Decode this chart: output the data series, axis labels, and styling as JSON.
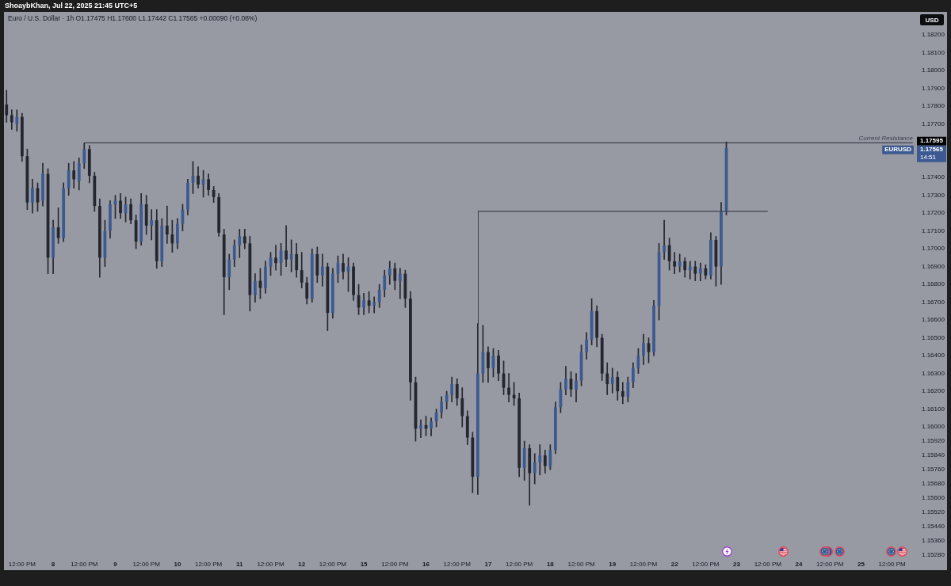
{
  "chart_data": {
    "type": "candlestick",
    "title": "Euro / U.S. Dollar · 1h O1.17475 H1.17600 L1.17442 C1.17565 +0.00090 (+0.08%)",
    "subtitle": "ShoaybKhan, Jul 22, 2025 21:45 UTC+5",
    "ylabel": "USD",
    "categories": [
      null,
      null,
      null,
      "12:00 PM",
      null,
      null,
      null,
      null,
      null,
      "8",
      null,
      null,
      null,
      null,
      null,
      "12:00 PM",
      null,
      null,
      null,
      null,
      null,
      "9",
      null,
      null,
      null,
      null,
      null,
      "12:00 PM",
      null,
      null,
      null,
      null,
      null,
      "10",
      null,
      null,
      null,
      null,
      null,
      "12:00 PM",
      null,
      null,
      null,
      null,
      null,
      "11",
      null,
      null,
      null,
      null,
      null,
      "12:00 PM",
      null,
      null,
      null,
      null,
      null,
      "12",
      null,
      null,
      null,
      null,
      null,
      "12:00 PM",
      null,
      null,
      null,
      null,
      null,
      "15",
      null,
      null,
      null,
      null,
      null,
      "12:00 PM",
      null,
      null,
      null,
      null,
      null,
      "16",
      null,
      null,
      null,
      null,
      null,
      "12:00 PM",
      null,
      null,
      null,
      null,
      null,
      "17",
      null,
      null,
      null,
      null,
      null,
      "12:00 PM",
      null,
      null,
      null,
      null,
      null,
      "18",
      null,
      null,
      null,
      null,
      null,
      "12:00 PM",
      null,
      null,
      null,
      null,
      null,
      "19",
      null,
      null,
      null,
      null,
      null,
      "12:00 PM",
      null,
      null,
      null,
      null,
      null,
      "22",
      null,
      null,
      null,
      null,
      null,
      "12:00 PM",
      null,
      null,
      null,
      null,
      null,
      "23",
      null,
      null,
      null,
      null,
      null,
      "12:00 PM",
      null,
      null,
      null,
      null,
      null,
      "24",
      null,
      null,
      null,
      null,
      null,
      "12:00 PM",
      null,
      null,
      null,
      null,
      null,
      "25",
      null,
      null,
      null,
      null,
      null,
      "12:00 PM",
      null,
      null,
      null,
      null
    ],
    "series": [
      {
        "name": "EURUSD",
        "color": "#24272f",
        "ohlc": [
          [
            1.1781,
            1.1789,
            1.1771,
            1.1775
          ],
          [
            1.1775,
            1.1778,
            1.1767,
            1.1771
          ],
          [
            1.177,
            1.1778,
            1.1766,
            1.1774
          ],
          [
            1.1774,
            1.1776,
            1.1749,
            1.1752
          ],
          [
            1.1752,
            1.1756,
            1.1722,
            1.1726
          ],
          [
            1.1726,
            1.1739,
            1.172,
            1.1734
          ],
          [
            1.1734,
            1.1737,
            1.1721,
            1.1726
          ],
          [
            1.1727,
            1.1748,
            1.1724,
            1.1742
          ],
          [
            1.1742,
            1.1745,
            1.1686,
            1.1695
          ],
          [
            1.1695,
            1.1716,
            1.1686,
            1.1712
          ],
          [
            1.1712,
            1.1723,
            1.1703,
            1.1706
          ],
          [
            1.1706,
            1.1737,
            1.1704,
            1.1734
          ],
          [
            1.1734,
            1.1748,
            1.173,
            1.1744
          ],
          [
            1.1744,
            1.1749,
            1.1734,
            1.1739
          ],
          [
            1.1738,
            1.1751,
            1.1733,
            1.1748
          ],
          [
            1.1748,
            1.17595,
            1.1745,
            1.1756
          ],
          [
            1.1756,
            1.1758,
            1.1737,
            1.1741
          ],
          [
            1.1741,
            1.1743,
            1.1721,
            1.1724
          ],
          [
            1.1724,
            1.1728,
            1.1684,
            1.1695
          ],
          [
            1.1695,
            1.1716,
            1.169,
            1.171
          ],
          [
            1.171,
            1.1727,
            1.1706,
            1.1725
          ],
          [
            1.1725,
            1.173,
            1.1717,
            1.1727
          ],
          [
            1.1727,
            1.1731,
            1.1717,
            1.172
          ],
          [
            1.172,
            1.1729,
            1.1715,
            1.1725
          ],
          [
            1.1725,
            1.1728,
            1.1714,
            1.1716
          ],
          [
            1.1716,
            1.1719,
            1.17,
            1.1704
          ],
          [
            1.1704,
            1.1731,
            1.1702,
            1.1725
          ],
          [
            1.1725,
            1.173,
            1.1708,
            1.1713
          ],
          [
            1.1713,
            1.1722,
            1.1705,
            1.1716
          ],
          [
            1.1716,
            1.1722,
            1.1689,
            1.1693
          ],
          [
            1.1693,
            1.1717,
            1.169,
            1.1713
          ],
          [
            1.1713,
            1.1724,
            1.1703,
            1.1708
          ],
          [
            1.1708,
            1.1716,
            1.1698,
            1.1703
          ],
          [
            1.1703,
            1.1717,
            1.17,
            1.1714
          ],
          [
            1.1714,
            1.1725,
            1.171,
            1.1722
          ],
          [
            1.1722,
            1.1739,
            1.1719,
            1.1737
          ],
          [
            1.1737,
            1.1749,
            1.1731,
            1.1741
          ],
          [
            1.1741,
            1.1746,
            1.1734,
            1.1736
          ],
          [
            1.1736,
            1.1744,
            1.1729,
            1.1739
          ],
          [
            1.1739,
            1.1742,
            1.173,
            1.1733
          ],
          [
            1.1733,
            1.1735,
            1.1726,
            1.1729
          ],
          [
            1.1729,
            1.1731,
            1.1707,
            1.1709
          ],
          [
            1.1708,
            1.1711,
            1.1663,
            1.1684
          ],
          [
            1.1684,
            1.1697,
            1.1677,
            1.1694
          ],
          [
            1.1694,
            1.1705,
            1.169,
            1.1702
          ],
          [
            1.1702,
            1.1711,
            1.1695,
            1.1707
          ],
          [
            1.1707,
            1.1711,
            1.17,
            1.1703
          ],
          [
            1.1703,
            1.1707,
            1.1665,
            1.1674
          ],
          [
            1.1674,
            1.1686,
            1.167,
            1.1682
          ],
          [
            1.1682,
            1.1689,
            1.1672,
            1.1678
          ],
          [
            1.1678,
            1.1693,
            1.1675,
            1.169
          ],
          [
            1.169,
            1.1698,
            1.1685,
            1.1695
          ],
          [
            1.1695,
            1.1702,
            1.1688,
            1.1692
          ],
          [
            1.1692,
            1.1703,
            1.1685,
            1.1699
          ],
          [
            1.1699,
            1.1713,
            1.169,
            1.1694
          ],
          [
            1.1694,
            1.1705,
            1.1687,
            1.1697
          ],
          [
            1.1697,
            1.1703,
            1.1684,
            1.1688
          ],
          [
            1.1688,
            1.1698,
            1.1678,
            1.1681
          ],
          [
            1.1681,
            1.1684,
            1.1669,
            1.1672
          ],
          [
            1.1672,
            1.17,
            1.167,
            1.1697
          ],
          [
            1.1697,
            1.1701,
            1.1681,
            1.1685
          ],
          [
            1.1685,
            1.1697,
            1.1679,
            1.169
          ],
          [
            1.169,
            1.1692,
            1.1654,
            1.1664
          ],
          [
            1.1664,
            1.1689,
            1.1661,
            1.1686
          ],
          [
            1.1686,
            1.1696,
            1.1681,
            1.1692
          ],
          [
            1.1692,
            1.1697,
            1.1683,
            1.1687
          ],
          [
            1.1687,
            1.1695,
            1.1676,
            1.169
          ],
          [
            1.169,
            1.1692,
            1.1671,
            1.1674
          ],
          [
            1.1674,
            1.168,
            1.1663,
            1.1667
          ],
          [
            1.1667,
            1.1675,
            1.1663,
            1.1671
          ],
          [
            1.1671,
            1.1676,
            1.1664,
            1.1668
          ],
          [
            1.1668,
            1.1673,
            1.1664,
            1.167
          ],
          [
            1.167,
            1.168,
            1.1667,
            1.1677
          ],
          [
            1.1677,
            1.1688,
            1.1673,
            1.1685
          ],
          [
            1.1685,
            1.1693,
            1.168,
            1.1689
          ],
          [
            1.1689,
            1.1692,
            1.1677,
            1.1682
          ],
          [
            1.1682,
            1.1689,
            1.1672,
            1.1686
          ],
          [
            1.1686,
            1.1688,
            1.1667,
            1.1672
          ],
          [
            1.1672,
            1.1676,
            1.1615,
            1.1625
          ],
          [
            1.1625,
            1.1628,
            1.1592,
            1.1599
          ],
          [
            1.1599,
            1.1604,
            1.1594,
            1.1601
          ],
          [
            1.1601,
            1.1606,
            1.1595,
            1.1599
          ],
          [
            1.1599,
            1.1605,
            1.1595,
            1.1603
          ],
          [
            1.1603,
            1.161,
            1.16,
            1.1608
          ],
          [
            1.1608,
            1.1617,
            1.1605,
            1.1614
          ],
          [
            1.1614,
            1.162,
            1.161,
            1.1618
          ],
          [
            1.1618,
            1.1628,
            1.1614,
            1.1624
          ],
          [
            1.1624,
            1.1627,
            1.1612,
            1.1616
          ],
          [
            1.1616,
            1.1622,
            1.16,
            1.1606
          ],
          [
            1.1606,
            1.1609,
            1.159,
            1.1594
          ],
          [
            1.1594,
            1.1597,
            1.1563,
            1.1572
          ],
          [
            1.1572,
            1.1658,
            1.1562,
            1.163
          ],
          [
            1.163,
            1.1657,
            1.1625,
            1.1642
          ],
          [
            1.1642,
            1.1645,
            1.1625,
            1.1633
          ],
          [
            1.1633,
            1.1644,
            1.1628,
            1.164
          ],
          [
            1.164,
            1.1643,
            1.1626,
            1.163
          ],
          [
            1.163,
            1.1637,
            1.1618,
            1.1622
          ],
          [
            1.1622,
            1.163,
            1.1614,
            1.1618
          ],
          [
            1.1618,
            1.1625,
            1.1612,
            1.1616
          ],
          [
            1.1616,
            1.1619,
            1.1572,
            1.1577
          ],
          [
            1.1577,
            1.1592,
            1.157,
            1.1588
          ],
          [
            1.1588,
            1.159,
            1.1556,
            1.1574
          ],
          [
            1.1574,
            1.1585,
            1.1568,
            1.158
          ],
          [
            1.158,
            1.159,
            1.1573,
            1.1584
          ],
          [
            1.1584,
            1.1587,
            1.1574,
            1.1578
          ],
          [
            1.1578,
            1.159,
            1.1576,
            1.1587
          ],
          [
            1.1587,
            1.1614,
            1.1585,
            1.1611
          ],
          [
            1.1611,
            1.1625,
            1.1608,
            1.1621
          ],
          [
            1.1621,
            1.1634,
            1.1618,
            1.1627
          ],
          [
            1.1627,
            1.1631,
            1.1617,
            1.1621
          ],
          [
            1.1621,
            1.163,
            1.1614,
            1.1626
          ],
          [
            1.1626,
            1.1646,
            1.1623,
            1.1642
          ],
          [
            1.1642,
            1.1653,
            1.1638,
            1.1649
          ],
          [
            1.1649,
            1.1672,
            1.1646,
            1.1665
          ],
          [
            1.1665,
            1.1668,
            1.1645,
            1.165
          ],
          [
            1.165,
            1.1652,
            1.1626,
            1.163
          ],
          [
            1.163,
            1.1636,
            1.1618,
            1.1624
          ],
          [
            1.1624,
            1.1633,
            1.1619,
            1.1628
          ],
          [
            1.1628,
            1.1631,
            1.1615,
            1.162
          ],
          [
            1.162,
            1.1625,
            1.1613,
            1.1617
          ],
          [
            1.1617,
            1.1628,
            1.1614,
            1.1625
          ],
          [
            1.1625,
            1.1636,
            1.1622,
            1.1633
          ],
          [
            1.1633,
            1.1644,
            1.163,
            1.164
          ],
          [
            1.164,
            1.1652,
            1.1635,
            1.1647
          ],
          [
            1.1647,
            1.165,
            1.1636,
            1.1642
          ],
          [
            1.1642,
            1.1671,
            1.164,
            1.1668
          ],
          [
            1.1668,
            1.1703,
            1.166,
            1.1698
          ],
          [
            1.1698,
            1.1716,
            1.1694,
            1.1702
          ],
          [
            1.1702,
            1.1706,
            1.1688,
            1.1693
          ],
          [
            1.1693,
            1.1698,
            1.1686,
            1.169
          ],
          [
            1.169,
            1.1697,
            1.1687,
            1.1693
          ],
          [
            1.1693,
            1.1695,
            1.1684,
            1.1688
          ],
          [
            1.1688,
            1.1693,
            1.1683,
            1.169
          ],
          [
            1.169,
            1.1693,
            1.1682,
            1.1686
          ],
          [
            1.1686,
            1.1692,
            1.1682,
            1.1689
          ],
          [
            1.1689,
            1.1691,
            1.1683,
            1.1685
          ],
          [
            1.1685,
            1.1709,
            1.1683,
            1.1705
          ],
          [
            1.1705,
            1.1707,
            1.1679,
            1.169
          ],
          [
            1.169,
            1.1726,
            1.168,
            1.1721
          ],
          [
            1.1721,
            1.176,
            1.1719,
            1.17565
          ],
          null,
          null,
          null,
          null,
          null,
          null,
          null,
          null,
          null,
          null,
          null,
          null,
          null,
          null,
          null,
          null,
          null,
          null,
          null,
          null,
          null,
          null,
          null,
          null,
          null,
          null,
          null,
          null,
          null,
          null,
          null,
          null,
          null,
          null,
          null,
          null
        ],
        "colors": [
          "#24272f",
          "#24272f",
          "#3c5a91",
          "#24272f",
          "#24272f",
          "#3c5a91",
          "#24272f",
          "#3c5a91",
          "#24272f",
          "#3c5a91",
          "#24272f",
          "#3c5a91",
          "#3c5a91",
          "#24272f",
          "#3c5a91",
          "#3c5a91",
          "#24272f",
          "#24272f",
          "#24272f",
          "#3c5a91",
          "#3c5a91",
          "#3c5a91",
          "#24272f",
          "#3c5a91",
          "#24272f",
          "#24272f",
          "#3c5a91",
          "#24272f",
          "#3c5a91",
          "#24272f",
          "#3c5a91",
          "#24272f",
          "#24272f",
          "#3c5a91",
          "#3c5a91",
          "#3c5a91",
          "#3c5a91",
          "#24272f",
          "#3c5a91",
          "#24272f",
          "#24272f",
          "#24272f",
          "#24272f",
          "#3c5a91",
          "#3c5a91",
          "#3c5a91",
          "#24272f",
          "#24272f",
          "#3c5a91",
          "#24272f",
          "#3c5a91",
          "#3c5a91",
          "#24272f",
          "#3c5a91",
          "#24272f",
          "#3c5a91",
          "#24272f",
          "#24272f",
          "#24272f",
          "#3c5a91",
          "#24272f",
          "#3c5a91",
          "#24272f",
          "#3c5a91",
          "#3c5a91",
          "#24272f",
          "#3c5a91",
          "#24272f",
          "#24272f",
          "#3c5a91",
          "#24272f",
          "#3c5a91",
          "#3c5a91",
          "#3c5a91",
          "#3c5a91",
          "#24272f",
          "#3c5a91",
          "#24272f",
          "#24272f",
          "#24272f",
          "#3c5a91",
          "#24272f",
          "#3c5a91",
          "#3c5a91",
          "#3c5a91",
          "#3c5a91",
          "#3c5a91",
          "#24272f",
          "#24272f",
          "#24272f",
          "#24272f",
          "#3c5a91",
          "#3c5a91",
          "#24272f",
          "#3c5a91",
          "#24272f",
          "#24272f",
          "#24272f",
          "#24272f",
          "#24272f",
          "#3c5a91",
          "#24272f",
          "#3c5a91",
          "#3c5a91",
          "#24272f",
          "#3c5a91",
          "#3c5a91",
          "#3c5a91",
          "#3c5a91",
          "#24272f",
          "#3c5a91",
          "#3c5a91",
          "#3c5a91",
          "#3c5a91",
          "#24272f",
          "#24272f",
          "#24272f",
          "#3c5a91",
          "#24272f",
          "#24272f",
          "#3c5a91",
          "#3c5a91",
          "#3c5a91",
          "#3c5a91",
          "#24272f",
          "#3c5a91",
          "#3c5a91",
          "#3c5a91",
          "#24272f",
          "#24272f",
          "#3c5a91",
          "#24272f",
          "#3c5a91",
          "#24272f",
          "#3c5a91",
          "#24272f",
          "#3c5a91",
          "#24272f",
          "#3c5a91",
          "#3c5a91",
          null,
          null,
          null,
          null,
          null,
          null,
          null,
          null,
          null,
          null,
          null,
          null,
          null,
          null,
          null,
          null,
          null,
          null,
          null,
          null,
          null,
          null,
          null,
          null,
          null,
          null,
          null,
          null,
          null,
          null,
          null,
          null,
          null,
          null,
          null,
          null
        ],
        "value_labels": [
          null,
          null,
          null,
          null,
          null,
          null,
          null,
          null,
          null,
          null,
          null,
          null,
          null,
          null,
          null,
          null,
          null,
          null,
          null,
          null,
          null,
          null,
          null,
          null,
          null,
          null,
          null,
          null,
          null,
          null,
          null,
          null,
          null,
          null,
          null,
          null,
          null,
          null,
          null,
          null,
          null,
          null,
          null,
          null,
          null,
          null,
          null,
          null,
          null,
          null,
          null,
          null,
          null,
          null,
          null,
          null,
          null,
          null,
          null,
          null,
          null,
          null,
          null,
          null,
          null,
          null,
          null,
          null,
          null,
          null,
          null,
          null,
          null,
          null,
          null,
          null,
          null,
          null,
          null,
          null,
          null,
          null,
          null,
          null,
          null,
          null,
          null,
          null,
          null,
          null,
          null,
          null,
          null,
          null,
          null,
          null,
          null,
          null,
          null,
          null,
          null,
          null,
          null,
          null,
          null,
          null,
          null,
          null,
          null,
          null,
          null,
          null,
          null,
          null,
          null,
          null,
          null,
          null,
          null,
          null,
          null,
          null,
          null,
          null,
          null,
          null,
          null,
          null,
          null,
          null,
          null,
          null,
          null,
          null,
          null,
          null,
          null,
          null,
          null,
          "1.17565",
          null,
          null,
          null,
          null,
          null,
          null,
          null,
          null,
          null,
          null,
          null,
          null,
          null,
          null,
          null,
          null,
          null,
          null,
          null,
          null,
          null,
          null,
          null,
          null,
          null,
          null,
          null,
          null,
          null,
          null,
          null,
          null,
          null,
          null,
          null,
          null
        ]
      },
      {
        "type": "line",
        "name": "Current Resistance",
        "color": "#3e414b",
        "values": [
          null,
          null,
          null,
          null,
          null,
          null,
          null,
          null,
          null,
          null,
          null,
          null,
          null,
          null,
          null,
          1.17595,
          1.17595,
          1.17595,
          1.17595,
          1.17595,
          1.17595,
          1.17595,
          1.17595,
          1.17595,
          1.17595,
          1.17595,
          1.17595,
          1.17595,
          1.17595,
          1.17595,
          1.17595,
          1.17595,
          1.17595,
          1.17595,
          1.17595,
          1.17595,
          1.17595,
          1.17595,
          1.17595,
          1.17595,
          1.17595,
          1.17595,
          1.17595,
          1.17595,
          1.17595,
          1.17595,
          1.17595,
          1.17595,
          1.17595,
          1.17595,
          1.17595,
          1.17595,
          1.17595,
          1.17595,
          1.17595,
          1.17595,
          1.17595,
          1.17595,
          1.17595,
          1.17595,
          1.17595,
          1.17595,
          1.17595,
          1.17595,
          1.17595,
          1.17595,
          1.17595,
          1.17595,
          1.17595,
          1.17595,
          1.17595,
          1.17595,
          1.17595,
          1.17595,
          1.17595,
          1.17595,
          1.17595,
          1.17595,
          1.17595,
          1.17595,
          1.17595,
          1.17595,
          1.17595,
          1.17595,
          1.17595,
          1.17595,
          1.17595,
          1.17595,
          1.17595,
          1.17595,
          1.17595,
          1.17595,
          1.17595,
          1.17595,
          1.17595,
          1.17595,
          1.17595,
          1.17595,
          1.17595,
          1.17595,
          1.17595,
          1.17595,
          1.17595,
          1.17595,
          1.17595,
          1.17595,
          1.17595,
          1.17595,
          1.17595,
          1.17595,
          1.17595,
          1.17595,
          1.17595,
          1.17595,
          1.17595,
          1.17595,
          1.17595,
          1.17595,
          1.17595,
          1.17595,
          1.17595,
          1.17595,
          1.17595,
          1.17595,
          1.17595,
          1.17595,
          1.17595,
          1.17595,
          1.17595,
          1.17595,
          1.17595,
          1.17595,
          1.17595,
          1.17595,
          1.17595,
          1.17595,
          1.17595,
          1.17595,
          1.17595,
          1.17595,
          1.17595,
          1.17595,
          1.17595,
          1.17595,
          1.17595,
          1.17595,
          1.17595,
          1.17595,
          1.17595,
          1.17595,
          1.17595,
          1.17595,
          1.17595,
          1.17595,
          1.17595,
          1.17595,
          1.17595,
          1.17595,
          1.17595,
          1.17595,
          1.17595,
          1.17595,
          1.17595,
          1.17595,
          1.17595,
          1.17595,
          1.17595,
          1.17595,
          1.17595,
          1.17595,
          1.17595,
          1.17595,
          1.17595,
          1.17595,
          1.17595,
          1.17595
        ],
        "value_labels": [
          null,
          null,
          null,
          null,
          null,
          null,
          null,
          null,
          null,
          null,
          null,
          null,
          null,
          null,
          null,
          null,
          null,
          null,
          null,
          null,
          null,
          null,
          null,
          null,
          null,
          null,
          null,
          null,
          null,
          null,
          null,
          null,
          null,
          null,
          null,
          null,
          null,
          null,
          null,
          null,
          null,
          null,
          null,
          null,
          null,
          null,
          null,
          null,
          null,
          null,
          null,
          null,
          null,
          null,
          null,
          null,
          null,
          null,
          null,
          null,
          null,
          null,
          null,
          null,
          null,
          null,
          null,
          null,
          null,
          null,
          null,
          null,
          null,
          null,
          null,
          null,
          null,
          null,
          null,
          null,
          null,
          null,
          null,
          null,
          null,
          null,
          null,
          null,
          null,
          null,
          null,
          null,
          null,
          null,
          null,
          null,
          null,
          null,
          null,
          null,
          null,
          null,
          null,
          null,
          null,
          null,
          null,
          null,
          null,
          null,
          null,
          null,
          null,
          null,
          null,
          null,
          null,
          null,
          null,
          null,
          null,
          null,
          null,
          null,
          null,
          null,
          null,
          null,
          null,
          null,
          null,
          null,
          null,
          null,
          null,
          null,
          null,
          null,
          null,
          null,
          null,
          null,
          null,
          null,
          null,
          null,
          null,
          null,
          null,
          null,
          null,
          null,
          null,
          null,
          null,
          null,
          null,
          null,
          null,
          null,
          null,
          null,
          null,
          null,
          null,
          null,
          null,
          null,
          null,
          null,
          null,
          null,
          null,
          null,
          null,
          "1.17595"
        ]
      },
      {
        "type": "line",
        "color": "#3e414b",
        "values": [
          null,
          null,
          null,
          null,
          null,
          null,
          null,
          null,
          null,
          null,
          null,
          null,
          null,
          null,
          null,
          null,
          null,
          null,
          null,
          null,
          null,
          null,
          null,
          null,
          null,
          null,
          null,
          null,
          null,
          null,
          null,
          null,
          null,
          null,
          null,
          null,
          null,
          null,
          null,
          null,
          null,
          null,
          null,
          null,
          null,
          null,
          null,
          null,
          null,
          null,
          null,
          null,
          null,
          null,
          null,
          null,
          null,
          null,
          null,
          null,
          null,
          null,
          null,
          null,
          null,
          null,
          null,
          null,
          null,
          null,
          null,
          null,
          null,
          null,
          null,
          null,
          null,
          null,
          null,
          null,
          null,
          null,
          null,
          null,
          null,
          null,
          null,
          null,
          null,
          null,
          null,
          1.1721,
          1.1721,
          1.1721,
          1.1721,
          1.1721,
          1.1721,
          1.1721,
          1.1721,
          1.1721,
          1.1721,
          1.1721,
          1.1721,
          1.1721,
          1.1721,
          1.1721,
          1.1721,
          1.1721,
          1.1721,
          1.1721,
          1.1721,
          1.1721,
          1.1721,
          1.1721,
          1.1721,
          1.1721,
          1.1721,
          1.1721,
          1.1721,
          1.1721,
          1.1721,
          1.1721,
          1.1721,
          1.1721,
          1.1721,
          1.1721,
          1.1721,
          1.1721,
          1.1721,
          1.1721,
          1.1721,
          1.1721,
          1.1721,
          1.1721,
          1.1721,
          1.1721,
          1.1721,
          1.1721,
          1.1721,
          1.1721,
          1.1721,
          1.1721,
          1.1721,
          1.1721,
          1.1721,
          1.1721,
          1.1721,
          1.1721,
          null,
          null,
          null,
          null,
          null,
          null,
          null,
          null,
          null,
          null,
          null,
          null,
          null,
          null,
          null,
          null,
          null,
          null,
          null,
          null,
          null,
          null,
          null,
          null,
          null,
          null,
          null,
          null
        ]
      }
    ],
    "ylim": [
      1.1528,
      1.1833
    ],
    "yticks": [
      {
        "value": 1.182,
        "label": "1.18200"
      },
      {
        "value": 1.181,
        "label": "1.18100"
      },
      {
        "value": 1.18,
        "label": "1.18000"
      },
      {
        "value": 1.179,
        "label": "1.17900"
      },
      {
        "value": 1.178,
        "label": "1.17800"
      },
      {
        "value": 1.177,
        "label": "1.17700"
      },
      {
        "value": 1.174,
        "label": "1.17400"
      },
      {
        "value": 1.173,
        "label": "1.17300"
      },
      {
        "value": 1.172,
        "label": "1.17200"
      },
      {
        "value": 1.171,
        "label": "1.17100"
      },
      {
        "value": 1.17,
        "label": "1.17000"
      },
      {
        "value": 1.169,
        "label": "1.16900"
      },
      {
        "value": 1.168,
        "label": "1.16800"
      },
      {
        "value": 1.167,
        "label": "1.16700"
      },
      {
        "value": 1.166,
        "label": "1.16600"
      },
      {
        "value": 1.165,
        "label": "1.16500"
      },
      {
        "value": 1.164,
        "label": "1.16400"
      },
      {
        "value": 1.163,
        "label": "1.16300"
      },
      {
        "value": 1.162,
        "label": "1.16200"
      },
      {
        "value": 1.161,
        "label": "1.16100"
      },
      {
        "value": 1.16,
        "label": "1.16000"
      },
      {
        "value": 1.1592,
        "label": "1.15920"
      },
      {
        "value": 1.1584,
        "label": "1.15840"
      },
      {
        "value": 1.1576,
        "label": "1.15760"
      },
      {
        "value": 1.1568,
        "label": "1.15680"
      },
      {
        "value": 1.156,
        "label": "1.15600"
      },
      {
        "value": 1.1552,
        "label": "1.15520"
      },
      {
        "value": 1.1544,
        "label": "1.15440"
      },
      {
        "value": 1.1536,
        "label": "1.15360"
      },
      {
        "value": 1.1528,
        "label": "1.15280"
      }
    ],
    "annotations": [
      "14:51"
    ]
  }
}
